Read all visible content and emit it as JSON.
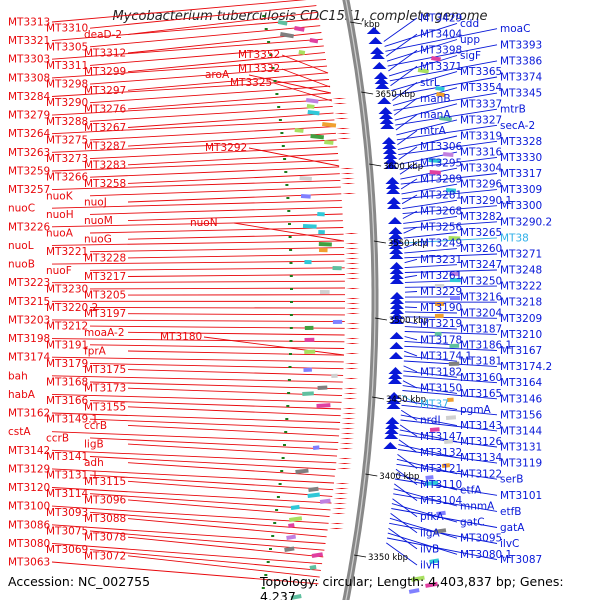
{
  "title": "Mycobacterium tuberculosis CDC1551, complete genome",
  "footer": {
    "accession": "Accession: NC_002755",
    "summary": "Topology: circular; Length: 4,403,837 bp; Genes: 4,237"
  },
  "colors": {
    "forward_strand": "#e8080c",
    "reverse_strand": "#0818d8",
    "highlight": "#30b0e8",
    "backbone": "#888888",
    "tick_mark": "#1a7a1a"
  },
  "ticks": [
    "3350 kbp",
    "3400 kbp",
    "3450 kbp",
    "3500 kbp",
    "3550 kbp",
    "3600 kbp",
    "3650 kbp",
    "kbp"
  ],
  "left_labels": [
    "MT3313",
    "MT3310",
    "deaD-2",
    "MT3321",
    "MT3305",
    "MT3312",
    "MT3303",
    "MT3311",
    "MT3299",
    "MT3308",
    "MT3298",
    "MT3297",
    "MT3284",
    "MT3290",
    "MT3276",
    "MT3279",
    "MT3288",
    "MT3267",
    "MT3264",
    "MT3275",
    "MT3287",
    "MT3263",
    "MT3273",
    "MT3283",
    "MT3259",
    "MT3266",
    "MT3258",
    "MT3257",
    "nuoK",
    "nuoJ",
    "nuoC",
    "nuoH",
    "nuoM",
    "MT3226",
    "nuoA",
    "nuoG",
    "nuoL",
    "MT3221",
    "MT3228",
    "nuoB",
    "nuoF",
    "MT3217",
    "MT3223",
    "MT3230",
    "MT3205",
    "MT3215",
    "MT3220.2",
    "MT3197",
    "MT3203",
    "MT3212",
    "moaA-2",
    "MT3198",
    "MT3191",
    "fprA",
    "MT3174",
    "MT3179",
    "MT3175",
    "bah",
    "MT3168",
    "MT3173",
    "habA",
    "MT3166",
    "MT3155",
    "MT3162",
    "MT3149.1",
    "ccrB",
    "cstA",
    "ccrB",
    "ligB",
    "MT3142",
    "MT3141",
    "adh",
    "MT3129",
    "MT3131.1",
    "MT3115",
    "MT3120",
    "MT3114",
    "MT3096",
    "MT3100",
    "MT3093",
    "MT3088",
    "MT3086",
    "MT3075",
    "MT3078",
    "MT3080",
    "MT3069",
    "MT3072",
    "MT3063"
  ],
  "center_labels": [
    "MT3352",
    "MT3332",
    "aroA",
    "MT3325",
    "MT3292",
    "nuoN",
    "MT3180"
  ],
  "right_labels": [
    "MT3429",
    "cdd",
    "moaC",
    "MT3404",
    "upp",
    "MT3393",
    "MT3398",
    "sigF",
    "MT3386",
    "MT3371",
    "MT3365",
    "MT3374",
    "strL",
    "MT3354",
    "MT3345",
    "manB",
    "MT3337",
    "mtrB",
    "manA",
    "MT3327",
    "secA-2",
    "mtrA",
    "MT3319",
    "MT3328",
    "MT3306",
    "MT3316",
    "MT3330",
    "MT3295",
    "MT3304",
    "MT3317",
    "MT3289",
    "MT3296",
    "MT3309",
    "MT3281",
    "MT3290.1",
    "MT3300",
    "MT3268",
    "MT3282",
    "MT3290.2",
    "MT3256",
    "MT3265",
    "MT38",
    "MT3249",
    "MT3260",
    "MT3271",
    "MT3231",
    "MT3247",
    "MT3248",
    "MT3261",
    "MT3250",
    "MT3222",
    "MT3229",
    "MT3216",
    "MT3218",
    "MT3190",
    "MT3204",
    "MT3209",
    "MT3219",
    "MT3187",
    "MT3210",
    "MT3178",
    "MT3186.1",
    "MT3167",
    "MT3174.1",
    "MT3181",
    "MT3174.2",
    "MT3182",
    "MT3160",
    "MT3164",
    "MT3150",
    "MT3165",
    "MT3146",
    "MT37",
    "pgmA",
    "MT3156",
    "nrdI",
    "MT3143",
    "MT3144",
    "MT3147",
    "MT3126",
    "MT3131",
    "MT3132",
    "MT3134",
    "MT3119",
    "MT3121",
    "MT3122",
    "serB",
    "MT3110",
    "etfA",
    "MT3101",
    "MT3104",
    "mnmA",
    "etfB",
    "pfkA",
    "gatC",
    "gatA",
    "ligA",
    "MT3095",
    "ilvC",
    "ilvB",
    "MT3080.1",
    "MT3087",
    "ilvH"
  ]
}
